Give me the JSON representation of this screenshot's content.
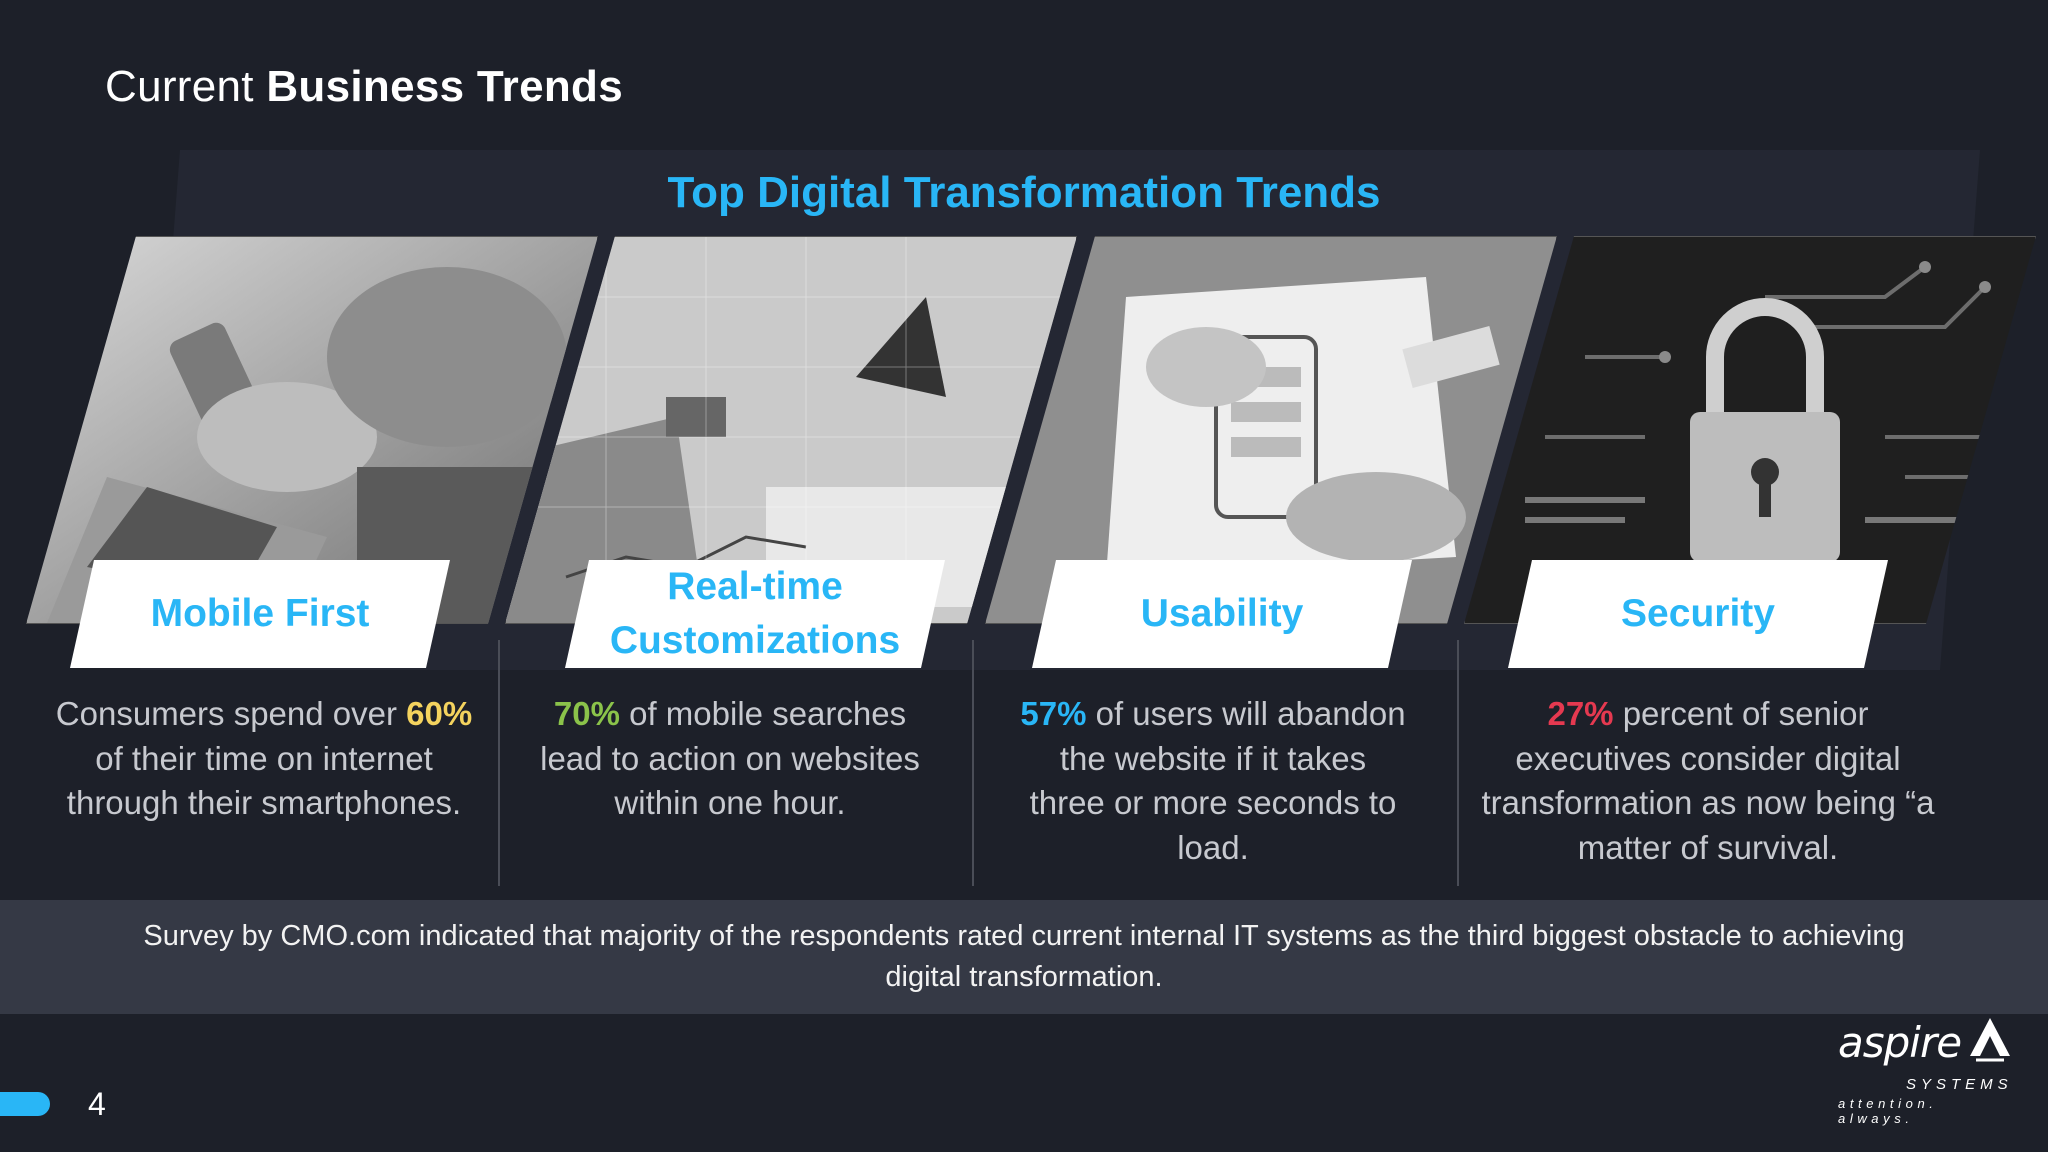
{
  "slide": {
    "title_regular": "Current ",
    "title_bold": "Business Trends",
    "section_title": "Top Digital Transformation Trends",
    "page_number": "4"
  },
  "colors": {
    "accent_blue": "#29b6f6",
    "highlight_yellow": "#f4d35e",
    "highlight_green": "#8bc34a",
    "highlight_blue": "#29b6f6",
    "highlight_red": "#e53950"
  },
  "cards": [
    {
      "label": "Mobile First",
      "stat": "",
      "pre": "Consumers spend over ",
      "highlight": "60%",
      "post": " of their time on internet through their smartphones.",
      "image_icon": "smartphone-laptop-photo"
    },
    {
      "label": "Real-time Customizations",
      "pre": "",
      "highlight": "70%",
      "post": " of mobile searches lead to action on websites within one hour.",
      "image_icon": "analytics-desk-photo"
    },
    {
      "label": "Usability",
      "pre": "",
      "highlight": "57%",
      "post": " of users will abandon the website if it takes three or more seconds to load.",
      "image_icon": "wireframe-sketch-photo"
    },
    {
      "label": "Security",
      "pre": "",
      "highlight": "27%",
      "post": " percent of senior executives consider digital transformation as now being “a matter of survival.",
      "image_icon": "padlock-circuit-photo"
    }
  ],
  "survey_text": "Survey by CMO.com indicated that majority of the respondents rated current internal IT systems as the third biggest obstacle to achieving digital transformation.",
  "logo": {
    "word": "aspire",
    "systems": "SYSTEMS",
    "tagline": "attention. always."
  }
}
